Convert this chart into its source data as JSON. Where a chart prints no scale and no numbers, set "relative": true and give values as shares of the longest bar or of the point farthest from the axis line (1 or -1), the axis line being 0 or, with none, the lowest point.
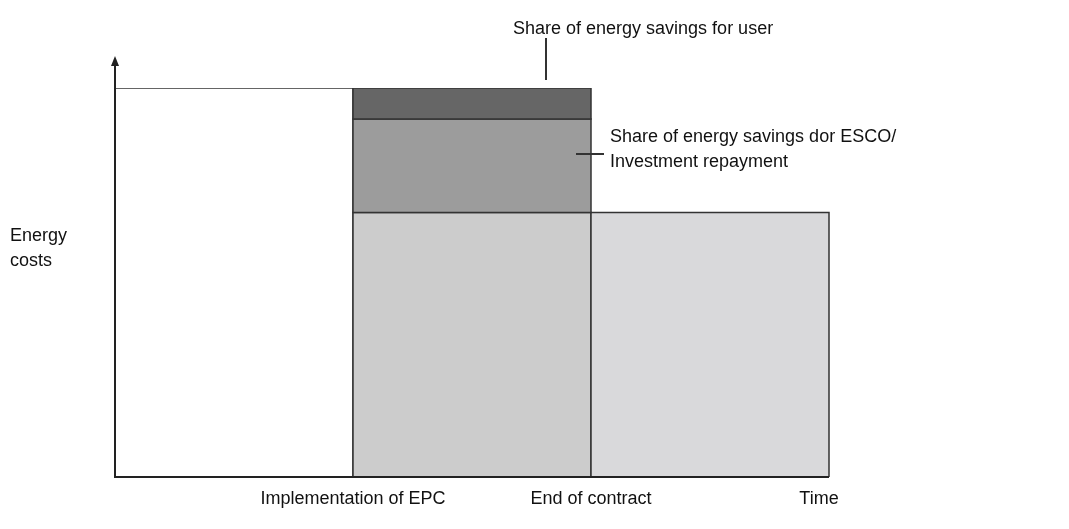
{
  "chart_data": {
    "type": "bar",
    "relative": true,
    "stacked": true,
    "categories": [
      null,
      null,
      null
    ],
    "ylabel": "Energy costs",
    "xlabel": "Time",
    "annotations": [
      "Implementation of EPC",
      "End of contract"
    ],
    "series": [
      {
        "colors": [
          "#ffffff",
          "#cccccc",
          "#d9d9db"
        ],
        "values": [
          1,
          0.68,
          0.68
        ]
      },
      {
        "name": "Share of energy savings dor ESCO/ Investment repayment",
        "color": "#9c9c9c",
        "values": [
          null,
          0.24,
          null
        ]
      },
      {
        "name": "Share of energy savings for user",
        "color": "#666666",
        "values": [
          null,
          0.08,
          null
        ]
      }
    ]
  }
}
